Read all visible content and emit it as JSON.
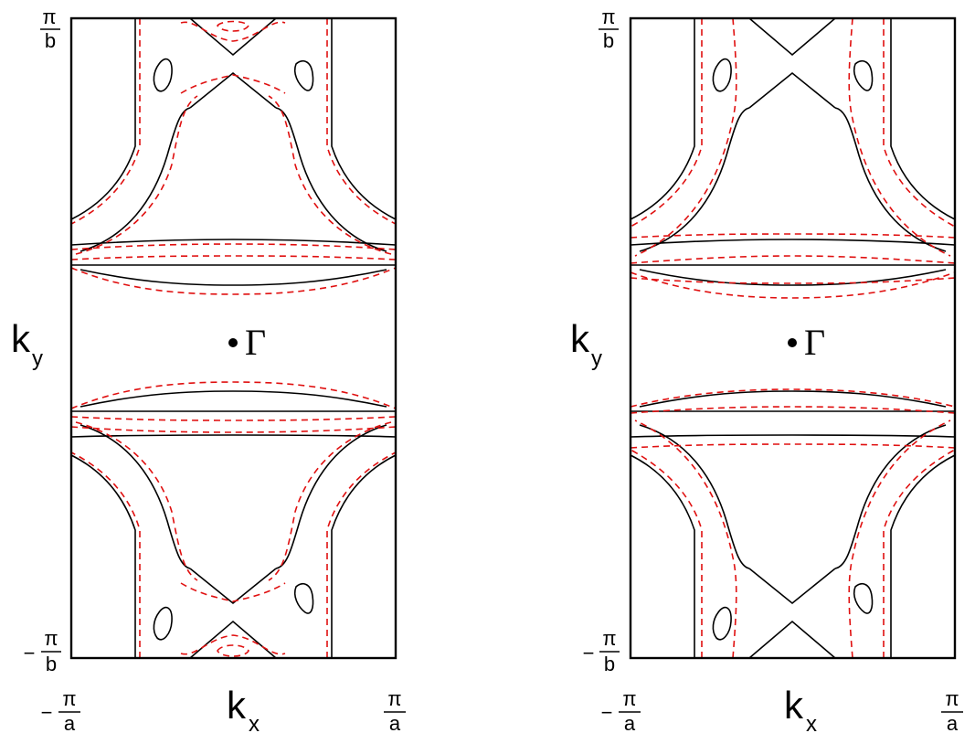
{
  "panels": [
    {
      "id": "left",
      "ky_label": "k",
      "ky_sub": "y",
      "kx_label": "k",
      "kx_sub": "x",
      "gamma": "Γ",
      "top_num": "π",
      "top_den": "b",
      "bottom_sign": "−",
      "bottom_num": "π",
      "bottom_den": "b",
      "left_sign": "−",
      "left_num": "π",
      "left_den": "a",
      "right_num": "π",
      "right_den": "a"
    },
    {
      "id": "right",
      "ky_label": "k",
      "ky_sub": "y",
      "kx_label": "k",
      "kx_sub": "x",
      "gamma": "Γ",
      "top_num": "π",
      "top_den": "b",
      "bottom_sign": "−",
      "bottom_num": "π",
      "bottom_den": "b",
      "left_sign": "−",
      "left_num": "π",
      "left_den": "a",
      "right_num": "π",
      "right_den": "a"
    }
  ],
  "colors": {
    "solid": "#000000",
    "dashed": "#e01010"
  }
}
